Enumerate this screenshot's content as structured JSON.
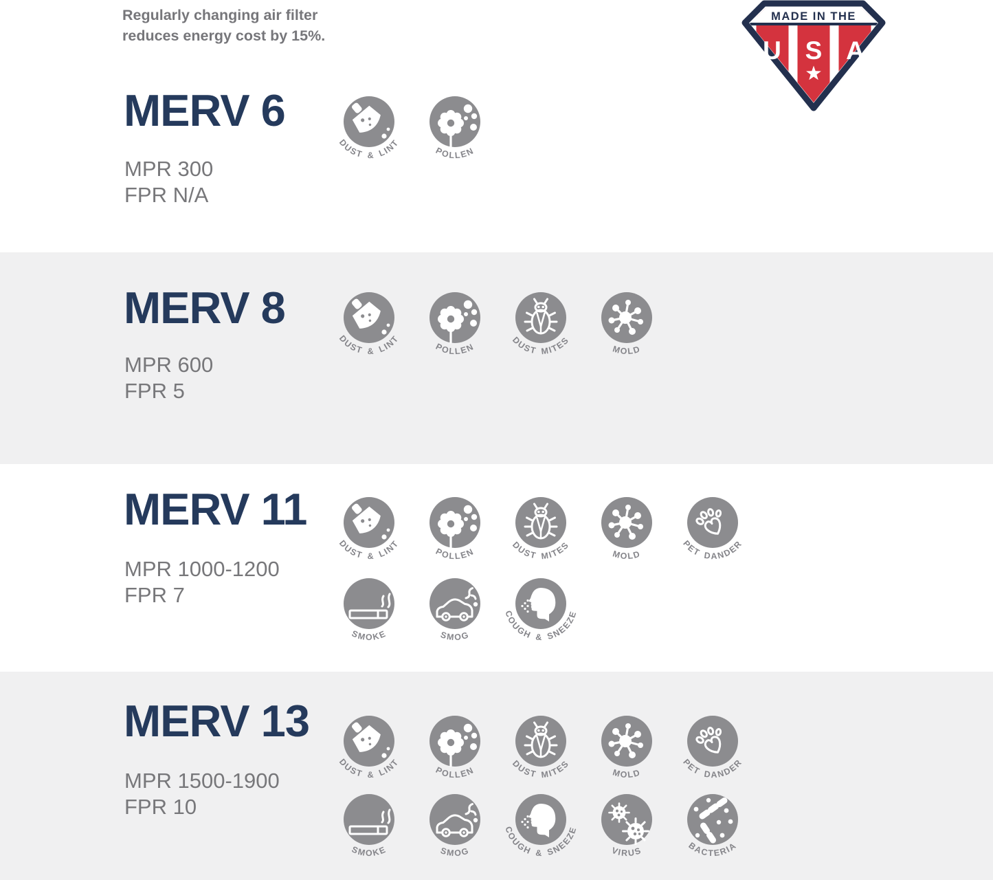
{
  "note": {
    "line1": "Regularly changing air filter",
    "line2": "reduces energy cost by 15%."
  },
  "badge": {
    "top_text": "MADE IN THE",
    "letters": [
      "U",
      "S",
      "A"
    ]
  },
  "colors": {
    "heading_navy": "#253a5c",
    "body_gray": "#77777a",
    "icon_circle": "#8c8c8f",
    "icon_label": "#85858a",
    "band_gray": "#f0f0f1",
    "badge_navy": "#23304e",
    "badge_red": "#d4333e"
  },
  "icons": {
    "dust_lint": {
      "label": "DUST & LINT"
    },
    "pollen": {
      "label": "POLLEN"
    },
    "dust_mites": {
      "label": "DUST MITES"
    },
    "mold": {
      "label": "MOLD"
    },
    "pet_dander": {
      "label": "PET DANDER"
    },
    "smoke": {
      "label": "SMOKE"
    },
    "smog": {
      "label": "SMOG"
    },
    "cough_sneeze": {
      "label": "COUGH & SNEEZE"
    },
    "virus": {
      "label": "VIRUS"
    },
    "bacteria": {
      "label": "BACTERIA"
    }
  },
  "sections": [
    {
      "title": "MERV 6",
      "mpr": "MPR 300",
      "fpr": "FPR N/A",
      "rows": [
        [
          "dust_lint",
          "pollen"
        ]
      ]
    },
    {
      "title": "MERV 8",
      "mpr": "MPR 600",
      "fpr": "FPR 5",
      "rows": [
        [
          "dust_lint",
          "pollen",
          "dust_mites",
          "mold"
        ]
      ]
    },
    {
      "title": "MERV 11",
      "mpr": "MPR 1000-1200",
      "fpr": "FPR 7",
      "rows": [
        [
          "dust_lint",
          "pollen",
          "dust_mites",
          "mold",
          "pet_dander"
        ],
        [
          "smoke",
          "smog",
          "cough_sneeze"
        ]
      ]
    },
    {
      "title": "MERV 13",
      "mpr": "MPR 1500-1900",
      "fpr": "FPR 10",
      "rows": [
        [
          "dust_lint",
          "pollen",
          "dust_mites",
          "mold",
          "pet_dander"
        ],
        [
          "smoke",
          "smog",
          "cough_sneeze",
          "virus",
          "bacteria"
        ]
      ]
    }
  ]
}
